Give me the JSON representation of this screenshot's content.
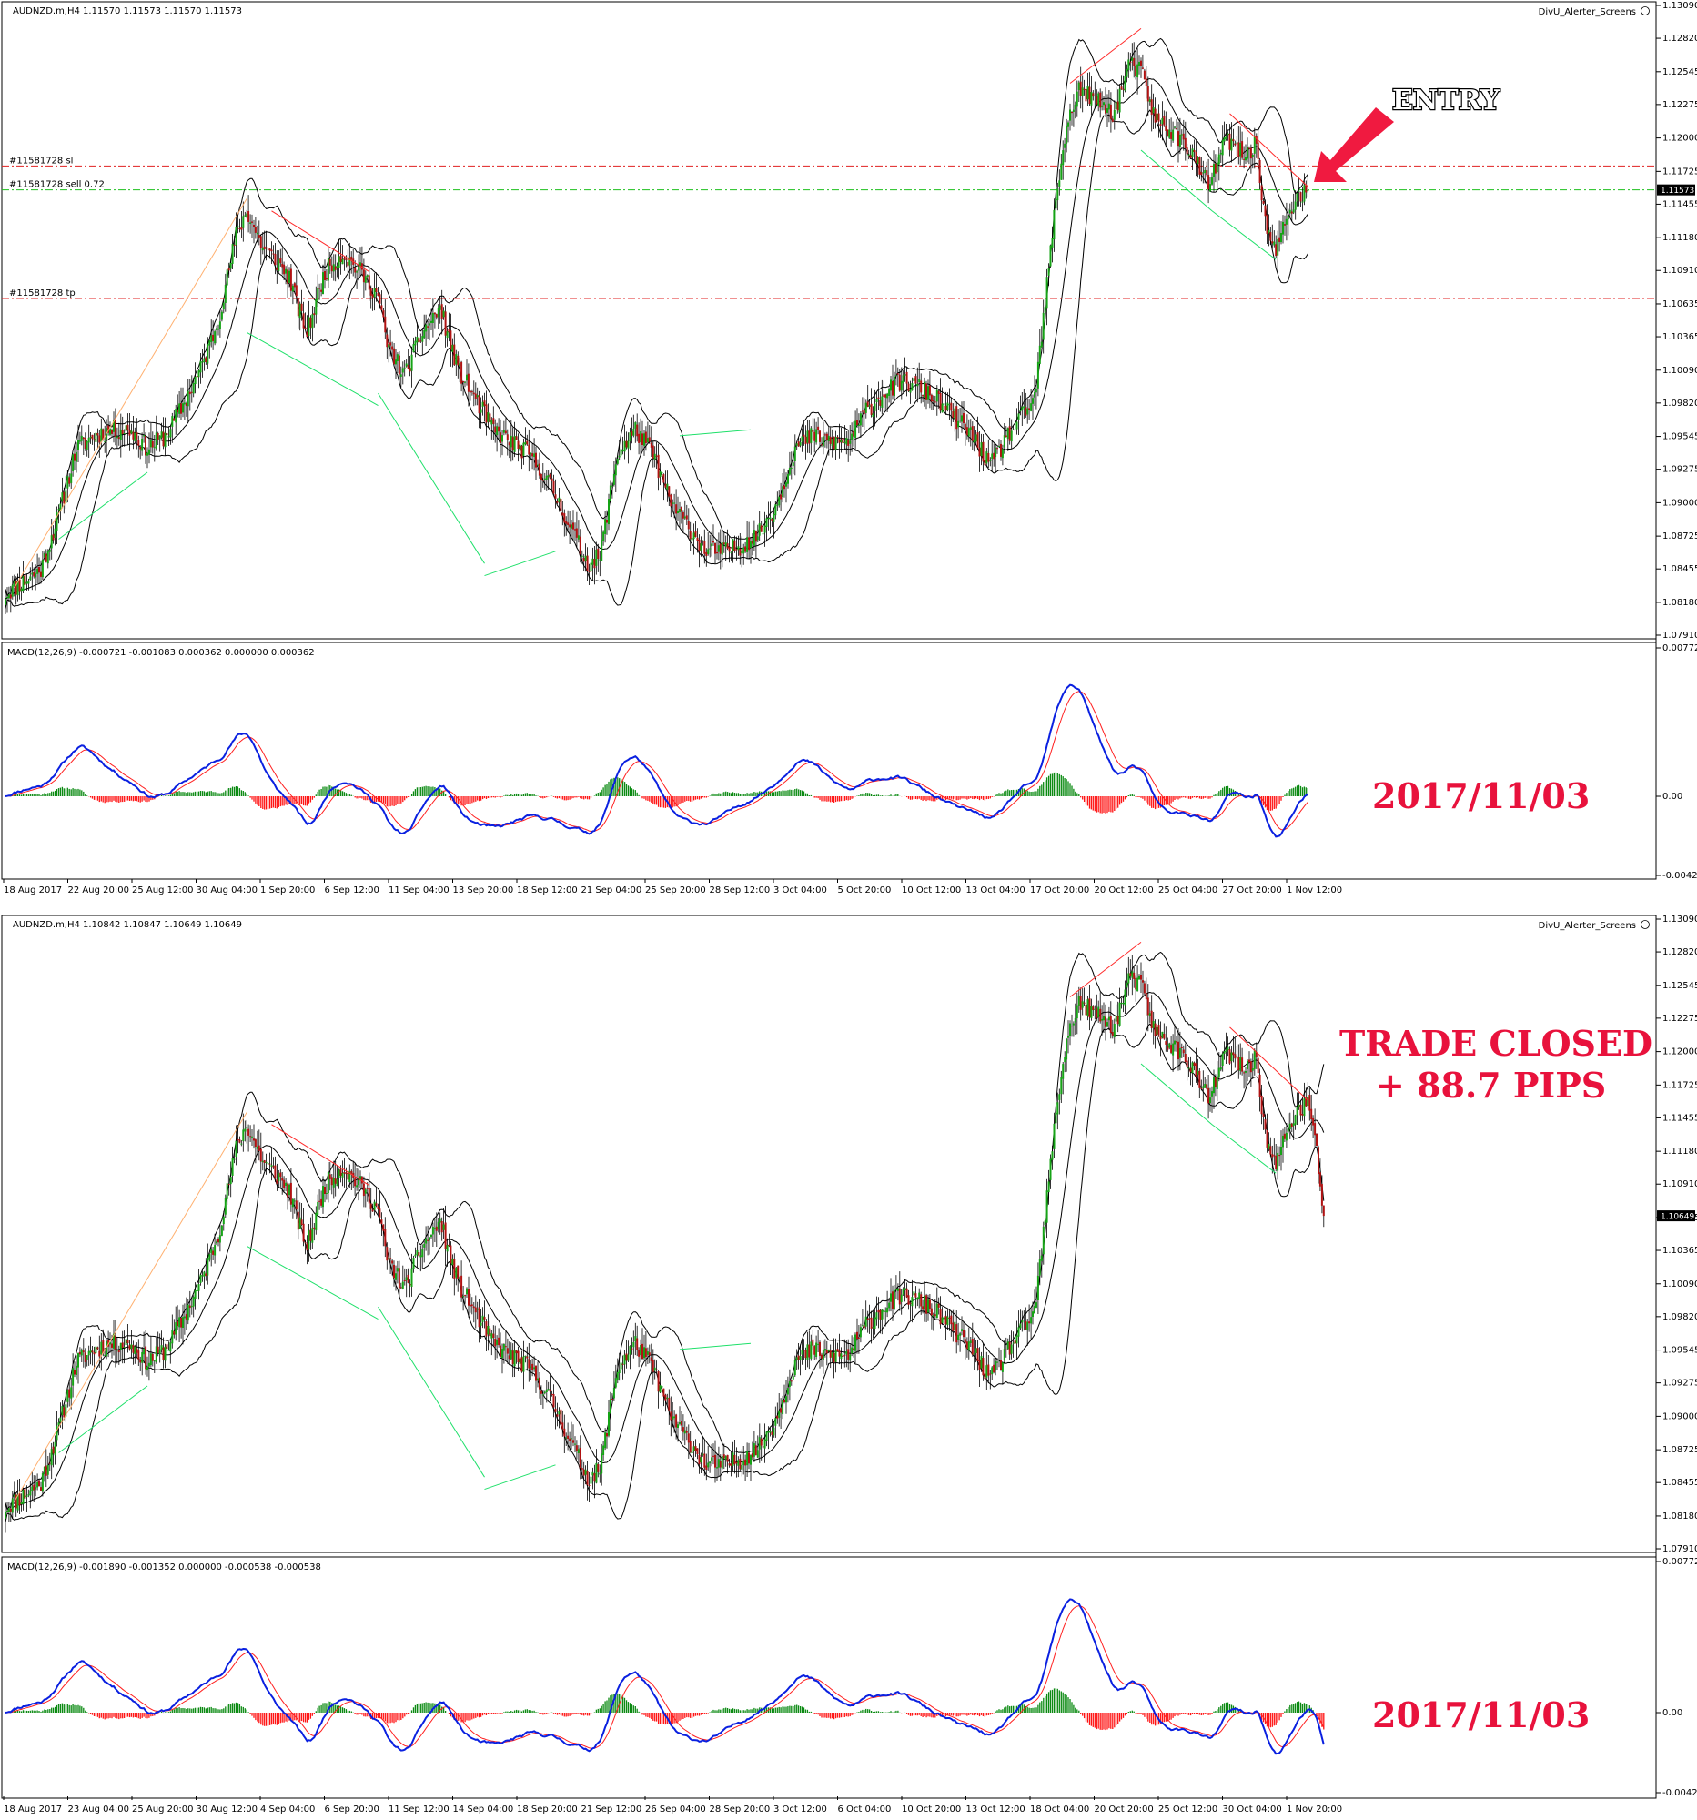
{
  "colors": {
    "bg": "#ffffff",
    "frame": "#000000",
    "bull_candle": "#16a316",
    "bear_candle": "#b01212",
    "bollinger": "#000000",
    "div_bear": "#ff2a2a",
    "div_bull": "#1fe06a",
    "div_early": "#ffb070",
    "trade_line_sl_tp": "#e02020",
    "trade_line_entry": "#1ec01e",
    "macd_line": "#0a20e0",
    "signal_line": "#ff2020",
    "hist_pos": "#0b8a12",
    "hist_neg": "#ff1515",
    "annotation": "#e8123c"
  },
  "panels": [
    {
      "instrument_label": "AUDNZD.m,H4  1.11570 1.11573 1.11570 1.11573",
      "indicator_label": "DivU_Alerter_Screens",
      "price_axis": [
        "1.13090",
        "1.12820",
        "1.12545",
        "1.12275",
        "1.12000",
        "1.11725",
        "1.11455",
        "1.11180",
        "1.10910",
        "1.10635",
        "1.10365",
        "1.10090",
        "1.09820",
        "1.09545",
        "1.09275",
        "1.09000",
        "1.08725",
        "1.08455",
        "1.08180",
        "1.07910"
      ],
      "current_price": "1.11573",
      "order_lines": [
        {
          "label": "#11581728 sl",
          "price": 1.1177,
          "kind": "sl"
        },
        {
          "label": "#11581728 sell 0.72",
          "price": 1.11573,
          "kind": "entry"
        },
        {
          "label": "#11581728 tp",
          "price": 1.1068,
          "kind": "tp"
        }
      ],
      "macd_label": "MACD(12,26,9) -0.000721 -0.001083 0.000362 0.000000 0.000362",
      "macd_axis": [
        "0.00772",
        "0.00",
        "-0.00424"
      ],
      "time_labels": [
        "18 Aug 2017",
        "22 Aug 20:00",
        "25 Aug 12:00",
        "30 Aug 04:00",
        "1 Sep 20:00",
        "6 Sep 12:00",
        "11 Sep 04:00",
        "13 Sep 20:00",
        "18 Sep 12:00",
        "21 Sep 04:00",
        "25 Sep 20:00",
        "28 Sep 12:00",
        "3 Oct 04:00",
        "5 Oct 20:00",
        "10 Oct 12:00",
        "13 Oct 04:00",
        "17 Oct 20:00",
        "20 Oct 12:00",
        "25 Oct 04:00",
        "27 Oct 20:00",
        "1 Nov 12:00"
      ],
      "annotation": "ENTRY",
      "date_stamp": "2017/11/03"
    },
    {
      "instrument_label": "AUDNZD.m,H4  1.10842 1.10847 1.10649 1.10649",
      "indicator_label": "DivU_Alerter_Screens",
      "price_axis": [
        "1.13090",
        "1.12820",
        "1.12545",
        "1.12275",
        "1.12000",
        "1.11725",
        "1.11455",
        "1.11180",
        "1.10910",
        "1.10635",
        "1.10365",
        "1.10090",
        "1.09820",
        "1.09545",
        "1.09275",
        "1.09000",
        "1.08725",
        "1.08455",
        "1.08180",
        "1.07910"
      ],
      "current_price": "1.10649",
      "order_lines": [],
      "macd_label": "MACD(12,26,9) -0.001890 -0.001352 0.000000 -0.000538 -0.000538",
      "macd_axis": [
        "0.00772",
        "0.00",
        "-0.00424"
      ],
      "time_labels": [
        "18 Aug 2017",
        "23 Aug 04:00",
        "25 Aug 20:00",
        "30 Aug 12:00",
        "4 Sep 04:00",
        "6 Sep 20:00",
        "11 Sep 12:00",
        "14 Sep 04:00",
        "18 Sep 20:00",
        "21 Sep 12:00",
        "26 Sep 04:00",
        "28 Sep 20:00",
        "3 Oct 12:00",
        "6 Oct 04:00",
        "10 Oct 20:00",
        "13 Oct 12:00",
        "18 Oct 04:00",
        "20 Oct 20:00",
        "25 Oct 12:00",
        "30 Oct 04:00",
        "1 Nov 20:00"
      ],
      "annotation_lines": [
        "TRADE CLOSED",
        "+ 88.7 PIPS"
      ],
      "date_stamp": "2017/11/03"
    }
  ],
  "chart_data": [
    {
      "type": "candlestick",
      "title": "AUDNZD.m,H4",
      "ylim": [
        1.0791,
        1.1309
      ],
      "anchors": [
        [
          0,
          1.0825
        ],
        [
          10,
          1.0835
        ],
        [
          20,
          1.0845
        ],
        [
          30,
          1.089
        ],
        [
          40,
          1.0945
        ],
        [
          50,
          1.0955
        ],
        [
          60,
          1.096
        ],
        [
          70,
          1.096
        ],
        [
          80,
          1.0945
        ],
        [
          90,
          1.0955
        ],
        [
          100,
          1.098
        ],
        [
          110,
          1.101
        ],
        [
          120,
          1.105
        ],
        [
          130,
          1.112
        ],
        [
          136,
          1.114
        ],
        [
          145,
          1.111
        ],
        [
          155,
          1.1095
        ],
        [
          160,
          1.1085
        ],
        [
          165,
          1.106
        ],
        [
          170,
          1.104
        ],
        [
          180,
          1.109
        ],
        [
          190,
          1.1105
        ],
        [
          200,
          1.109
        ],
        [
          210,
          1.107
        ],
        [
          215,
          1.103
        ],
        [
          225,
          1.1005
        ],
        [
          235,
          1.104
        ],
        [
          245,
          1.106
        ],
        [
          255,
          1.101
        ],
        [
          265,
          1.0985
        ],
        [
          275,
          1.096
        ],
        [
          285,
          1.095
        ],
        [
          295,
          1.094
        ],
        [
          305,
          1.092
        ],
        [
          312,
          1.09
        ],
        [
          320,
          1.0875
        ],
        [
          328,
          1.085
        ],
        [
          335,
          1.0855
        ],
        [
          340,
          1.09
        ],
        [
          345,
          1.094
        ],
        [
          355,
          1.096
        ],
        [
          365,
          1.094
        ],
        [
          375,
          1.09
        ],
        [
          385,
          1.088
        ],
        [
          395,
          1.086
        ],
        [
          405,
          1.086
        ],
        [
          415,
          1.0865
        ],
        [
          425,
          1.0875
        ],
        [
          435,
          1.09
        ],
        [
          445,
          1.0945
        ],
        [
          455,
          1.0955
        ],
        [
          465,
          1.095
        ],
        [
          475,
          1.095
        ],
        [
          485,
          1.0975
        ],
        [
          495,
          1.099
        ],
        [
          505,
          1.1
        ],
        [
          515,
          1.0995
        ],
        [
          525,
          1.0985
        ],
        [
          535,
          1.097
        ],
        [
          545,
          1.0955
        ],
        [
          555,
          1.093
        ],
        [
          565,
          1.0955
        ],
        [
          575,
          1.0975
        ],
        [
          580,
          1.0985
        ],
        [
          585,
          1.105
        ],
        [
          592,
          1.115
        ],
        [
          598,
          1.121
        ],
        [
          605,
          1.124
        ],
        [
          615,
          1.123
        ],
        [
          625,
          1.122
        ],
        [
          633,
          1.126
        ],
        [
          640,
          1.1255
        ],
        [
          648,
          1.1215
        ],
        [
          658,
          1.1205
        ],
        [
          668,
          1.119
        ],
        [
          678,
          1.116
        ],
        [
          688,
          1.12
        ],
        [
          698,
          1.1185
        ],
        [
          705,
          1.1195
        ],
        [
          710,
          1.113
        ],
        [
          716,
          1.1105
        ],
        [
          722,
          1.1135
        ],
        [
          728,
          1.115
        ],
        [
          734,
          1.1157
        ]
      ],
      "close_price": 1.11573,
      "bollinger": {
        "period": 20,
        "deviations": 2
      },
      "order_lines": [
        {
          "label": "sl",
          "price": 1.1177
        },
        {
          "label": "sell 0.72",
          "price": 1.11573
        },
        {
          "label": "tp",
          "price": 1.1068
        }
      ]
    },
    {
      "type": "line+bar",
      "title": "MACD(12,26,9)",
      "ylim": [
        -0.00424,
        0.00772
      ],
      "series": [
        {
          "name": "MACD"
        },
        {
          "name": "Signal"
        },
        {
          "name": "Histogram"
        }
      ]
    },
    {
      "type": "candlestick",
      "title": "AUDNZD.m,H4",
      "ylim": [
        1.0791,
        1.1309
      ],
      "anchors": [
        [
          0,
          1.0825
        ],
        [
          10,
          1.0835
        ],
        [
          20,
          1.0845
        ],
        [
          30,
          1.089
        ],
        [
          40,
          1.0945
        ],
        [
          50,
          1.0955
        ],
        [
          60,
          1.096
        ],
        [
          70,
          1.096
        ],
        [
          80,
          1.0945
        ],
        [
          90,
          1.0955
        ],
        [
          100,
          1.098
        ],
        [
          110,
          1.101
        ],
        [
          120,
          1.105
        ],
        [
          130,
          1.112
        ],
        [
          136,
          1.114
        ],
        [
          145,
          1.111
        ],
        [
          155,
          1.1095
        ],
        [
          160,
          1.1085
        ],
        [
          165,
          1.106
        ],
        [
          170,
          1.104
        ],
        [
          180,
          1.109
        ],
        [
          190,
          1.1105
        ],
        [
          200,
          1.109
        ],
        [
          210,
          1.107
        ],
        [
          215,
          1.103
        ],
        [
          225,
          1.1005
        ],
        [
          235,
          1.104
        ],
        [
          245,
          1.106
        ],
        [
          255,
          1.101
        ],
        [
          265,
          1.0985
        ],
        [
          275,
          1.096
        ],
        [
          285,
          1.095
        ],
        [
          295,
          1.094
        ],
        [
          305,
          1.092
        ],
        [
          312,
          1.09
        ],
        [
          320,
          1.0875
        ],
        [
          328,
          1.085
        ],
        [
          335,
          1.0855
        ],
        [
          340,
          1.09
        ],
        [
          345,
          1.094
        ],
        [
          355,
          1.096
        ],
        [
          365,
          1.094
        ],
        [
          375,
          1.09
        ],
        [
          385,
          1.088
        ],
        [
          395,
          1.086
        ],
        [
          405,
          1.086
        ],
        [
          415,
          1.0865
        ],
        [
          425,
          1.0875
        ],
        [
          435,
          1.09
        ],
        [
          445,
          1.0945
        ],
        [
          455,
          1.0955
        ],
        [
          465,
          1.095
        ],
        [
          475,
          1.095
        ],
        [
          485,
          1.0975
        ],
        [
          495,
          1.099
        ],
        [
          505,
          1.1
        ],
        [
          515,
          1.0995
        ],
        [
          525,
          1.0985
        ],
        [
          535,
          1.097
        ],
        [
          545,
          1.0955
        ],
        [
          555,
          1.093
        ],
        [
          565,
          1.0955
        ],
        [
          575,
          1.0975
        ],
        [
          580,
          1.0985
        ],
        [
          585,
          1.105
        ],
        [
          592,
          1.115
        ],
        [
          598,
          1.121
        ],
        [
          605,
          1.124
        ],
        [
          615,
          1.123
        ],
        [
          625,
          1.122
        ],
        [
          633,
          1.126
        ],
        [
          640,
          1.1255
        ],
        [
          648,
          1.1215
        ],
        [
          658,
          1.1205
        ],
        [
          668,
          1.119
        ],
        [
          678,
          1.116
        ],
        [
          688,
          1.12
        ],
        [
          698,
          1.1185
        ],
        [
          705,
          1.1195
        ],
        [
          710,
          1.113
        ],
        [
          716,
          1.1105
        ],
        [
          722,
          1.1135
        ],
        [
          728,
          1.115
        ],
        [
          734,
          1.1157
        ],
        [
          738,
          1.113
        ],
        [
          741,
          1.109
        ],
        [
          743,
          1.10649
        ]
      ],
      "close_price": 1.10649,
      "bollinger": {
        "period": 20,
        "deviations": 2
      }
    },
    {
      "type": "line+bar",
      "title": "MACD(12,26,9)",
      "ylim": [
        -0.00424,
        0.00772
      ],
      "series": [
        {
          "name": "MACD"
        },
        {
          "name": "Signal"
        },
        {
          "name": "Histogram"
        }
      ]
    }
  ]
}
